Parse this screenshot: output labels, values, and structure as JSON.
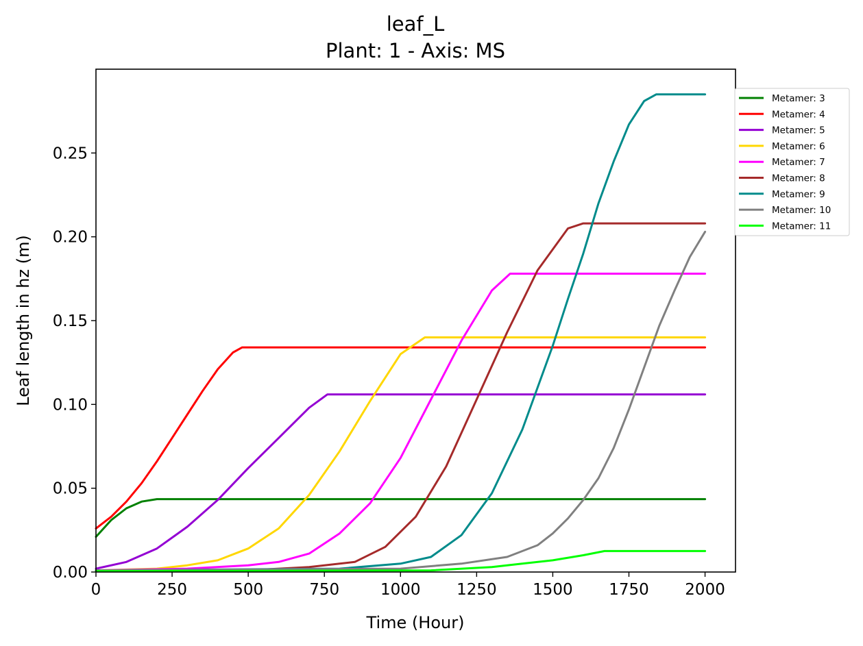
{
  "chart_data": {
    "type": "line",
    "title": "leaf_L",
    "subtitle": "Plant: 1 - Axis: MS",
    "xlabel": "Time (Hour)",
    "ylabel": "Leaf length in hz (m)",
    "xlim": [
      0,
      2100
    ],
    "ylim": [
      0,
      0.3
    ],
    "xticks": [
      "0",
      "250",
      "500",
      "750",
      "1000",
      "1250",
      "1500",
      "1750",
      "2000"
    ],
    "yticks": [
      "0.00",
      "0.05",
      "0.10",
      "0.15",
      "0.20",
      "0.25"
    ],
    "grid": false,
    "legend_position": "outside-top-right",
    "series": [
      {
        "name": "Metamer: 3",
        "color": "#008000",
        "x": [
          0,
          50,
          100,
          150,
          200,
          2000
        ],
        "y": [
          0.021,
          0.031,
          0.038,
          0.042,
          0.0435,
          0.0435
        ]
      },
      {
        "name": "Metamer: 4",
        "color": "#ff0000",
        "x": [
          0,
          50,
          100,
          150,
          200,
          250,
          300,
          350,
          400,
          450,
          480,
          2000
        ],
        "y": [
          0.026,
          0.033,
          0.042,
          0.053,
          0.066,
          0.08,
          0.094,
          0.108,
          0.121,
          0.131,
          0.134,
          0.134
        ]
      },
      {
        "name": "Metamer: 5",
        "color": "#9400d3",
        "x": [
          0,
          100,
          200,
          300,
          400,
          500,
          600,
          700,
          760,
          2000
        ],
        "y": [
          0.002,
          0.006,
          0.014,
          0.027,
          0.043,
          0.062,
          0.08,
          0.098,
          0.106,
          0.106
        ]
      },
      {
        "name": "Metamer: 6",
        "color": "#ffd700",
        "x": [
          0,
          200,
          300,
          400,
          500,
          600,
          700,
          800,
          900,
          1000,
          1080,
          2000
        ],
        "y": [
          0.001,
          0.002,
          0.004,
          0.007,
          0.014,
          0.026,
          0.046,
          0.072,
          0.102,
          0.13,
          0.14,
          0.14
        ]
      },
      {
        "name": "Metamer: 7",
        "color": "#ff00ff",
        "x": [
          0,
          300,
          500,
          600,
          700,
          800,
          900,
          1000,
          1100,
          1200,
          1300,
          1360,
          2000
        ],
        "y": [
          0.001,
          0.002,
          0.004,
          0.006,
          0.011,
          0.023,
          0.041,
          0.068,
          0.103,
          0.138,
          0.168,
          0.178,
          0.178
        ]
      },
      {
        "name": "Metamer: 8",
        "color": "#a52a2a",
        "x": [
          0,
          500,
          700,
          850,
          950,
          1050,
          1150,
          1250,
          1350,
          1450,
          1550,
          1600,
          2000
        ],
        "y": [
          0.001,
          0.001,
          0.003,
          0.006,
          0.015,
          0.033,
          0.063,
          0.103,
          0.143,
          0.18,
          0.205,
          0.208,
          0.208
        ]
      },
      {
        "name": "Metamer: 9",
        "color": "#008b8b",
        "x": [
          0,
          800,
          1000,
          1100,
          1200,
          1300,
          1400,
          1450,
          1500,
          1550,
          1600,
          1650,
          1700,
          1750,
          1800,
          1840,
          2000
        ],
        "y": [
          0.001,
          0.002,
          0.005,
          0.009,
          0.022,
          0.047,
          0.085,
          0.11,
          0.135,
          0.163,
          0.19,
          0.22,
          0.245,
          0.267,
          0.281,
          0.285,
          0.285
        ]
      },
      {
        "name": "Metamer: 10",
        "color": "#808080",
        "x": [
          0,
          1000,
          1200,
          1350,
          1450,
          1500,
          1550,
          1600,
          1650,
          1700,
          1750,
          1800,
          1850,
          1900,
          1950,
          2000
        ],
        "y": [
          0.001,
          0.002,
          0.005,
          0.009,
          0.016,
          0.023,
          0.032,
          0.043,
          0.056,
          0.074,
          0.097,
          0.122,
          0.147,
          0.168,
          0.188,
          0.203
        ]
      },
      {
        "name": "Metamer: 11",
        "color": "#00ff00",
        "x": [
          0,
          1100,
          1300,
          1400,
          1500,
          1600,
          1670,
          2000
        ],
        "y": [
          0.0005,
          0.001,
          0.003,
          0.005,
          0.007,
          0.01,
          0.0125,
          0.0125
        ]
      }
    ]
  }
}
